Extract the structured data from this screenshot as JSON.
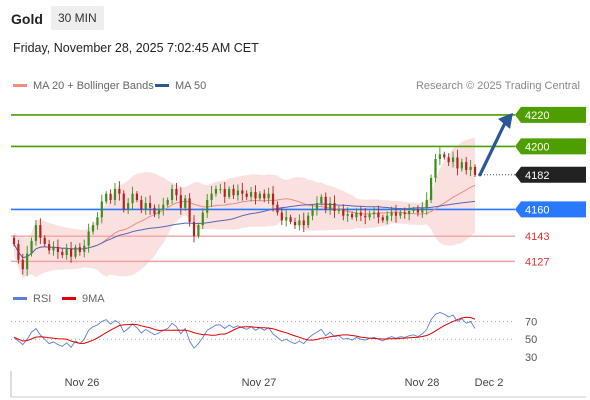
{
  "header": {
    "title": "Gold",
    "interval": "30 MIN"
  },
  "datetime": "Friday, November 28, 2025 7:02:45 AM CET",
  "legend": {
    "items": [
      {
        "label": "MA 20 + Bollinger Bands",
        "color": "#f28b82"
      },
      {
        "label": "MA 50",
        "color": "#2b5797"
      }
    ],
    "credit": "Research © 2025 Trading Central"
  },
  "rsi_legend": {
    "items": [
      {
        "label": "RSI",
        "color": "#5b7fd8"
      },
      {
        "label": "9MA",
        "color": "#e00000"
      }
    ]
  },
  "chart_data": [
    {
      "type": "candlestick",
      "ylim": [
        4112,
        4232
      ],
      "levels": [
        {
          "value": 4220,
          "label": "4220",
          "kind": "resistance",
          "color": "#4f9e00"
        },
        {
          "value": 4200,
          "label": "4200",
          "kind": "resistance",
          "color": "#4f9e00"
        },
        {
          "value": 4182,
          "label": "4182",
          "kind": "last-price",
          "color": "#222222"
        },
        {
          "value": 4160,
          "label": "4160",
          "kind": "pivot",
          "color": "#2979ff"
        },
        {
          "value": 4143,
          "label": "4143",
          "kind": "support",
          "color": "#e03030"
        },
        {
          "value": 4127,
          "label": "4127",
          "kind": "support",
          "color": "#e03030"
        }
      ],
      "forecast_arrow": {
        "from": 4182,
        "to": 4220,
        "color": "#2b5797"
      },
      "x_ticks": [
        "Nov 26",
        "Nov 27",
        "Nov 28",
        "Dec 2"
      ],
      "series": [
        {
          "name": "MA 20 + Bollinger Bands",
          "color": "#f28b82"
        },
        {
          "name": "MA 50",
          "color": "#2b5797"
        }
      ],
      "close": [
        4138,
        4128,
        4122,
        4132,
        4140,
        4150,
        4142,
        4138,
        4134,
        4136,
        4133,
        4131,
        4135,
        4130,
        4136,
        4133,
        4137,
        4146,
        4150,
        4155,
        4165,
        4170,
        4166,
        4173,
        4170,
        4160,
        4164,
        4170,
        4166,
        4160,
        4164,
        4161,
        4157,
        4160,
        4163,
        4166,
        4173,
        4169,
        4161,
        4167,
        4152,
        4143,
        4150,
        4158,
        4166,
        4170,
        4173,
        4173,
        4168,
        4173,
        4169,
        4172,
        4170,
        4168,
        4171,
        4167,
        4170,
        4167,
        4170,
        4163,
        4158,
        4153,
        4155,
        4152,
        4150,
        4153,
        4150,
        4156,
        4160,
        4164,
        4168,
        4160,
        4164,
        4159,
        4160,
        4156,
        4157,
        4155,
        4158,
        4156,
        4155,
        4157,
        4158,
        4155,
        4153,
        4156,
        4158,
        4156,
        4158,
        4157,
        4159,
        4160,
        4158,
        4161,
        4166,
        4180,
        4192,
        4195,
        4193,
        4190,
        4193,
        4186,
        4190,
        4185,
        4187,
        4182
      ]
    },
    {
      "type": "line",
      "title": "RSI",
      "ylim": [
        20,
        85
      ],
      "y_ticks": [
        70,
        50,
        30
      ],
      "series": [
        {
          "name": "RSI",
          "color": "#5b7fd8"
        },
        {
          "name": "9MA",
          "color": "#e00000"
        }
      ],
      "rsi": [
        52,
        48,
        44,
        50,
        58,
        62,
        55,
        50,
        45,
        47,
        44,
        42,
        46,
        41,
        48,
        45,
        50,
        60,
        64,
        66,
        70,
        72,
        67,
        71,
        68,
        58,
        62,
        67,
        63,
        57,
        61,
        58,
        55,
        57,
        60,
        62,
        68,
        64,
        56,
        62,
        48,
        40,
        45,
        52,
        60,
        63,
        66,
        66,
        62,
        66,
        63,
        65,
        63,
        61,
        64,
        60,
        63,
        60,
        63,
        56,
        52,
        48,
        50,
        47,
        45,
        48,
        45,
        51,
        55,
        58,
        61,
        54,
        58,
        53,
        54,
        50,
        51,
        49,
        52,
        50,
        49,
        51,
        52,
        50,
        48,
        51,
        53,
        51,
        53,
        52,
        54,
        55,
        53,
        56,
        61,
        72,
        78,
        80,
        78,
        75,
        77,
        70,
        73,
        68,
        70,
        62
      ]
    }
  ]
}
